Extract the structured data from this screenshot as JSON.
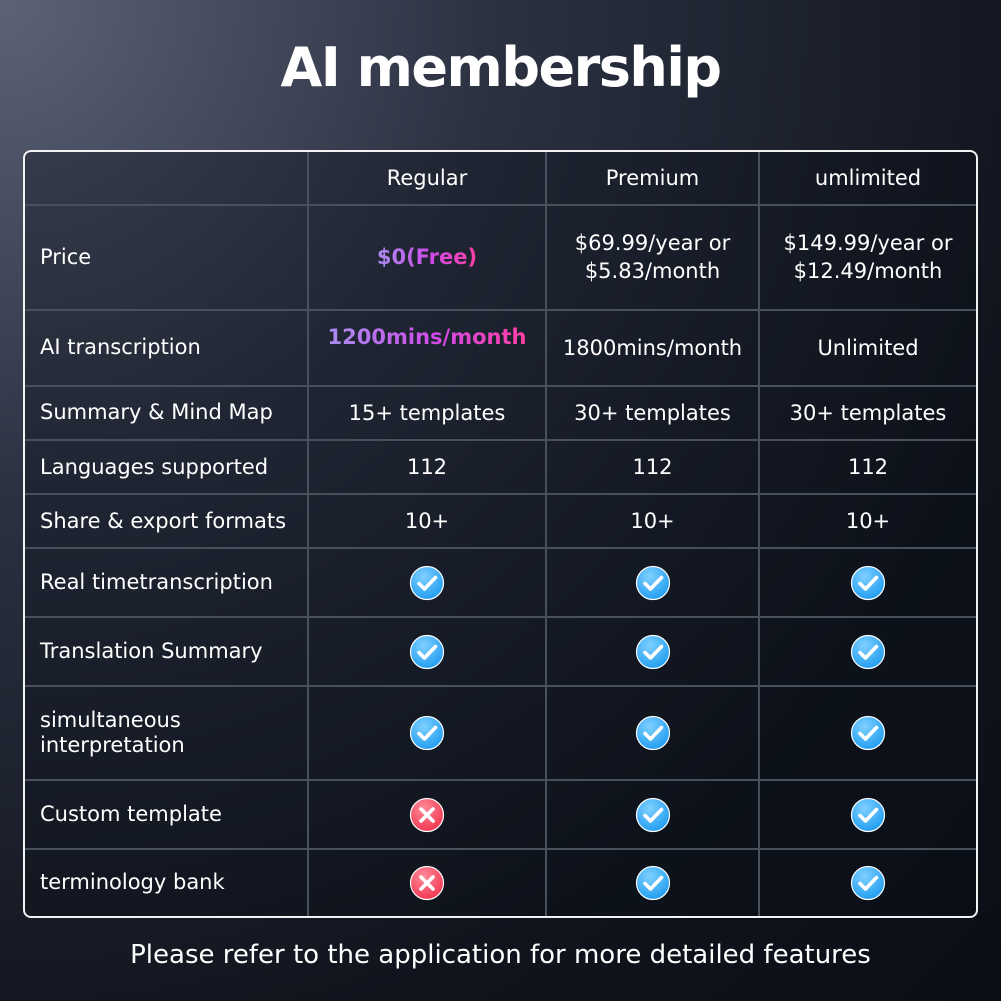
{
  "title": "AI membership",
  "columns": [
    "Regular",
    "Premium",
    "umlimited"
  ],
  "rows": [
    {
      "feature": "Price",
      "values": [
        "$0(Free)",
        "$69.99/year or\n$5.83/month",
        "$149.99/year or\n$12.49/month"
      ]
    },
    {
      "feature": "AI transcription",
      "values": [
        "1200mins/month",
        "1800mins/month",
        "Unlimited"
      ]
    },
    {
      "feature": "Summary & Mind Map",
      "values": [
        "15+ templates",
        "30+ templates",
        "30+ templates"
      ]
    },
    {
      "feature": "Languages supported",
      "values": [
        "112",
        "112",
        "112"
      ]
    },
    {
      "feature": "Share & export formats",
      "values": [
        "10+",
        "10+",
        "10+"
      ]
    },
    {
      "feature": "Real timetranscription",
      "marks": [
        "check-icon",
        "check-icon",
        "check-icon"
      ]
    },
    {
      "feature": "Translation Summary",
      "marks": [
        "check-icon",
        "check-icon",
        "check-icon"
      ]
    },
    {
      "feature": "simultaneous\ninterpretation",
      "marks": [
        "check-icon",
        "check-icon",
        "check-icon"
      ]
    },
    {
      "feature": "Custom template",
      "marks": [
        "cross-icon",
        "check-icon",
        "check-icon"
      ]
    },
    {
      "feature": "terminology bank",
      "marks": [
        "cross-icon",
        "check-icon",
        "check-icon"
      ]
    }
  ],
  "colors": {
    "check": "#1d9bf0",
    "cross": "#f0344e",
    "highlight_start": "#a88df0",
    "highlight_end": "#ff3fa4"
  },
  "footer": "Please refer to the application for more detailed features"
}
